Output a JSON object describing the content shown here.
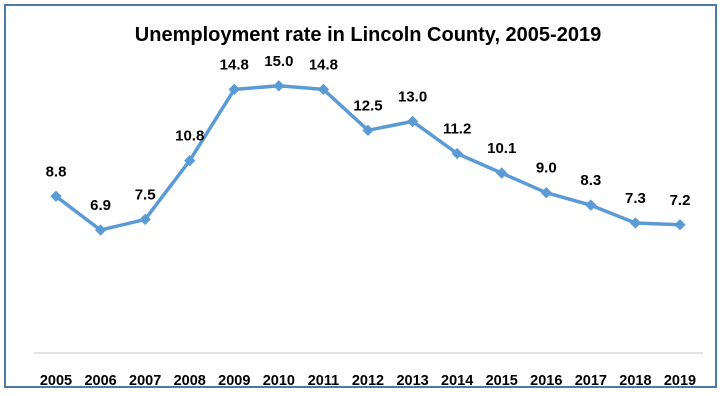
{
  "chart_data": {
    "type": "line",
    "title": "Unemployment rate in Lincoln County, 2005-2019",
    "xlabel": "",
    "ylabel": "",
    "categories": [
      "2005",
      "2006",
      "2007",
      "2008",
      "2009",
      "2010",
      "2011",
      "2012",
      "2013",
      "2014",
      "2015",
      "2016",
      "2017",
      "2018",
      "2019"
    ],
    "values": [
      8.8,
      6.9,
      7.5,
      10.8,
      14.8,
      15.0,
      14.8,
      12.5,
      13.0,
      11.2,
      10.1,
      9.0,
      8.3,
      7.3,
      7.2
    ],
    "data_labels": [
      "8.8",
      "6.9",
      "7.5",
      "10.8",
      "14.8",
      "15.0",
      "14.8",
      "12.5",
      "13.0",
      "11.2",
      "10.1",
      "9.0",
      "8.3",
      "7.3",
      "7.2"
    ],
    "ylim": [
      0,
      16
    ],
    "grid": false,
    "legend": "none",
    "line_color": "#5b9bd5",
    "marker": "diamond",
    "frame_color": "#4a7aa7",
    "axis_color": "#d9d9d9"
  }
}
